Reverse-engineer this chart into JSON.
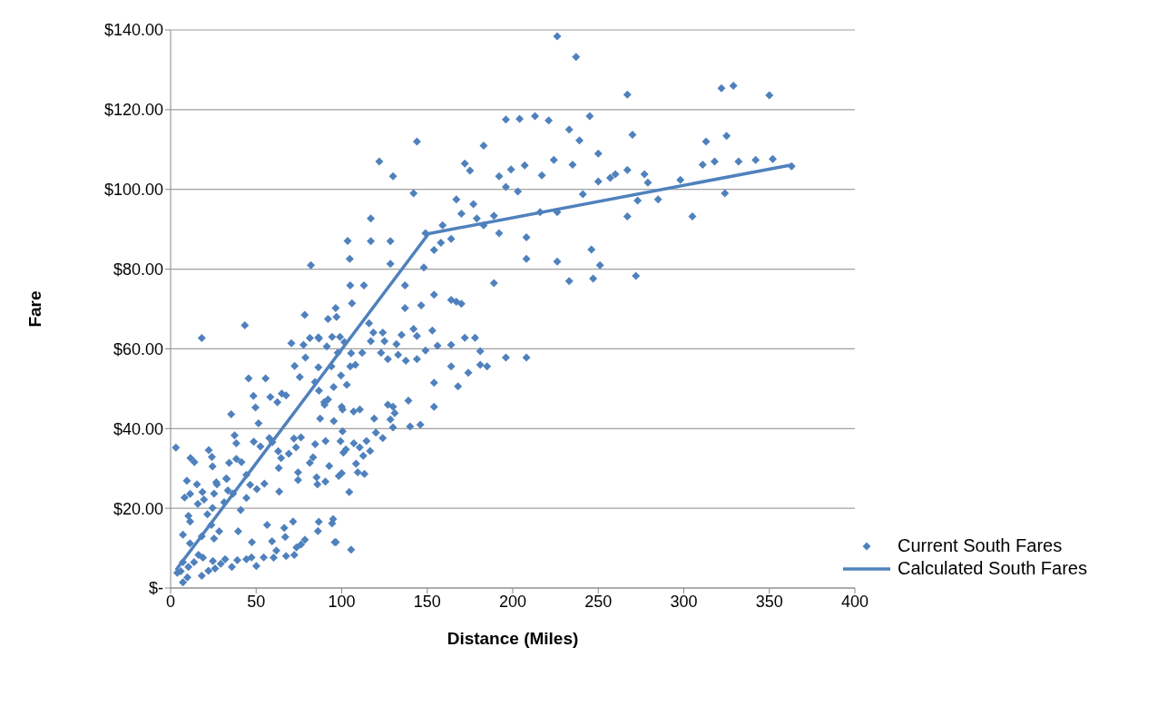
{
  "chart_data": {
    "type": "scatter",
    "xlabel": "Distance (Miles)",
    "ylabel": "Fare",
    "xlim": [
      0,
      400
    ],
    "xticks": [
      0,
      50,
      100,
      150,
      200,
      250,
      300,
      350,
      400
    ],
    "ylim": [
      0,
      140
    ],
    "yticks": [
      {
        "value": 0,
        "label": "$-"
      },
      {
        "value": 20,
        "label": "$20.00"
      },
      {
        "value": 40,
        "label": "$40.00"
      },
      {
        "value": 60,
        "label": "$60.00"
      },
      {
        "value": 80,
        "label": "$80.00"
      },
      {
        "value": 100,
        "label": "$100.00"
      },
      {
        "value": 120,
        "label": "$120.00"
      },
      {
        "value": 140,
        "label": "$140.00"
      }
    ],
    "grid": "y",
    "legend": "bottom right",
    "series": [
      {
        "name": "Current South Fares",
        "marker": "diamond",
        "color": "#4f81bd",
        "x": [
          226,
          237,
          267,
          322,
          329,
          350,
          196,
          204,
          213,
          221,
          245,
          144,
          183,
          233,
          239,
          250,
          270,
          325,
          313,
          172,
          175,
          192,
          199,
          207,
          217,
          224,
          235,
          241,
          250,
          257,
          260,
          267,
          277,
          279,
          298,
          311,
          318,
          332,
          342,
          352,
          324,
          192,
          208,
          208,
          226,
          233,
          246,
          247,
          251,
          272,
          267,
          305,
          273,
          285,
          216,
          226,
          203,
          196,
          189,
          189,
          196,
          208,
          363,
          122,
          130,
          103.5,
          104.7,
          117,
          117,
          128.5,
          128.5,
          142,
          149,
          158,
          159,
          164,
          170,
          177,
          179,
          183,
          154,
          167,
          113,
          105,
          106,
          82,
          96.5,
          97,
          137,
          137,
          146.5,
          148,
          142,
          154,
          164,
          167,
          170,
          153,
          135,
          144,
          149,
          156,
          164,
          172,
          178,
          164,
          181,
          181,
          185,
          168,
          174,
          154,
          139,
          130,
          140,
          146,
          154,
          144,
          137.5,
          116,
          117,
          125,
          124,
          132,
          123,
          127,
          133,
          112,
          108,
          103,
          105,
          100,
          107,
          119,
          120,
          124,
          127,
          128.5,
          130,
          131,
          114.5,
          110.5,
          100,
          95,
          96,
          101,
          90.6,
          86.7,
          90,
          92,
          95.3,
          94,
          99.6,
          97.7,
          101.6,
          99,
          92,
          86.7,
          77.7,
          65,
          3.1,
          18.2,
          43.4,
          78.4,
          70.6,
          81.4,
          86.4,
          94.4,
          118.5,
          91.3,
          78.8,
          72.5,
          86.4,
          45.6,
          55.5,
          75.5,
          84.4,
          67.5,
          48.4,
          58.3,
          62.4,
          49.6,
          35.4,
          51.4,
          89.8,
          100.5,
          110.6,
          105.5,
          87.4,
          95.4,
          100.5,
          99.3,
          107.1,
          102.5,
          112.6,
          116.6,
          108.4,
          109.4,
          113.3,
          104.4,
          37.4,
          38.4,
          48.6,
          52.5,
          57.7,
          59.5,
          62.9,
          64.6,
          63.2,
          69.1,
          72.1,
          76.2,
          73.3,
          81.4,
          83.3,
          84.5,
          74.5,
          74.5,
          85.3,
          85.8,
          90.5,
          92.7,
          98.3,
          63.5,
          54.8,
          50.4,
          46.5,
          44.3,
          41.4,
          38.4,
          34.2,
          32.8,
          26.7,
          24.5,
          24.1,
          22.3,
          15.4,
          9.5,
          11.6,
          13.9,
          8.2,
          11.4,
          18.6,
          19.5,
          25.4,
          27.1,
          32.5,
          33.5,
          36.5,
          31.3,
          24.5,
          15.9,
          21.5,
          10.4,
          11.4,
          23.8,
          28.4,
          25.4,
          7.2,
          11.3,
          18.2,
          39.5,
          41,
          44.3,
          56.4,
          66.4,
          71.6,
          86.6,
          94.4,
          96.6,
          105.5,
          86.1,
          78.5,
          76.2,
          73.6,
          67,
          59.3,
          47.5,
          47.3,
          54.4,
          60.2,
          61.8,
          67.5,
          72.3,
          50.1,
          44.3,
          39,
          35.8,
          31.9,
          29.3,
          24.7,
          26,
          22.1,
          18.9,
          16.3,
          13.7,
          18.2,
          10.4,
          7.2,
          3.9,
          7.2,
          9.8,
          5.9
        ],
        "values": [
          138.4,
          133.2,
          123.8,
          125.4,
          126,
          123.6,
          117.5,
          117.7,
          118.4,
          117.3,
          118.4,
          112,
          111,
          115,
          112.3,
          109,
          113.7,
          113.4,
          112,
          106.5,
          104.7,
          103.3,
          105,
          106,
          103.5,
          107.4,
          106.2,
          98.8,
          102,
          102.9,
          103.8,
          104.9,
          103.8,
          101.7,
          102.4,
          106.2,
          107,
          107,
          107.4,
          107.6,
          99,
          89,
          88,
          82.6,
          81.9,
          77,
          84.9,
          77.6,
          81,
          78.3,
          93.2,
          93.2,
          97.2,
          97.5,
          94.3,
          94.3,
          99.5,
          100.6,
          93.4,
          76.5,
          57.8,
          57.8,
          105.8,
          107,
          103.3,
          87.1,
          82.6,
          92.7,
          87,
          87,
          81.3,
          99,
          89,
          86.6,
          91,
          87.6,
          93.9,
          96.3,
          92.7,
          91,
          84.8,
          97.5,
          75.9,
          75.9,
          71.4,
          81,
          70.2,
          68,
          75.9,
          70.2,
          70.9,
          80.4,
          65,
          73.6,
          72.3,
          71.8,
          71.3,
          64.6,
          63.5,
          63.2,
          59.6,
          60.8,
          61,
          62.8,
          62.8,
          55.6,
          59.4,
          56,
          55.6,
          50.6,
          54,
          45.5,
          47,
          45.5,
          40.5,
          41,
          51.5,
          57.4,
          57,
          66.4,
          61.9,
          61.9,
          64.1,
          61.2,
          59,
          57.4,
          58.5,
          59,
          56,
          51,
          55.6,
          45.5,
          44.3,
          42.5,
          39,
          37.6,
          46,
          42.3,
          40.3,
          43.9,
          36.9,
          35.3,
          28.8,
          17.3,
          11.5,
          34,
          36.9,
          49.5,
          46,
          47.3,
          50.4,
          55.6,
          53.3,
          59,
          61.7,
          63,
          67.5,
          62.6,
          61,
          48.8,
          35.2,
          62.7,
          65.9,
          68.5,
          61.4,
          62.7,
          62.9,
          63,
          64.1,
          60.6,
          57.8,
          55.7,
          55.4,
          52.6,
          52.6,
          52.9,
          51.7,
          48.3,
          48.2,
          47.9,
          46.6,
          45.3,
          43.6,
          41.3,
          46.6,
          44.8,
          44.8,
          58.9,
          42.5,
          41.9,
          39.3,
          36.8,
          36.3,
          34.8,
          33.2,
          34.4,
          31.2,
          29,
          28.6,
          24.1,
          38.3,
          36.3,
          36.7,
          35.5,
          37.6,
          36.6,
          34.3,
          32.6,
          30.1,
          33.7,
          37.5,
          37.8,
          35.3,
          31.4,
          32.8,
          36.1,
          29,
          27.1,
          27.8,
          26,
          26.7,
          30.6,
          28.1,
          24.2,
          26.2,
          24.8,
          25.9,
          28.4,
          31.6,
          32.4,
          31.4,
          27.4,
          26.5,
          30.5,
          32.9,
          34.6,
          26,
          26.9,
          32.6,
          31.6,
          22.7,
          23.6,
          24.1,
          22.2,
          23.7,
          26,
          27.5,
          24.5,
          23.7,
          21.5,
          20.1,
          21.1,
          18.5,
          18.1,
          16.7,
          15.8,
          14.2,
          12.4,
          13.4,
          11.2,
          13,
          14.2,
          19.6,
          22.6,
          15.8,
          15.1,
          16.7,
          16.6,
          16.2,
          11.5,
          9.6,
          14.3,
          12.1,
          10.9,
          10.2,
          12.8,
          11.7,
          11.5,
          7.7,
          7.7,
          7.6,
          9.4,
          8,
          8.3,
          5.5,
          7.2,
          7,
          5.3,
          7.2,
          6.1,
          6.8,
          4.9,
          4.3,
          7.6,
          8.3,
          6.5,
          3.1,
          5.3,
          6.5,
          3.8,
          1.4,
          2.7,
          4.2
        ]
      },
      {
        "name": "Calculated South Fares",
        "type": "line",
        "marker": "none",
        "color": "#4f81bd",
        "x": [
          3.1,
          150.8,
          363.7
        ],
        "values": [
          4.5,
          88.9,
          106.2
        ]
      }
    ]
  }
}
